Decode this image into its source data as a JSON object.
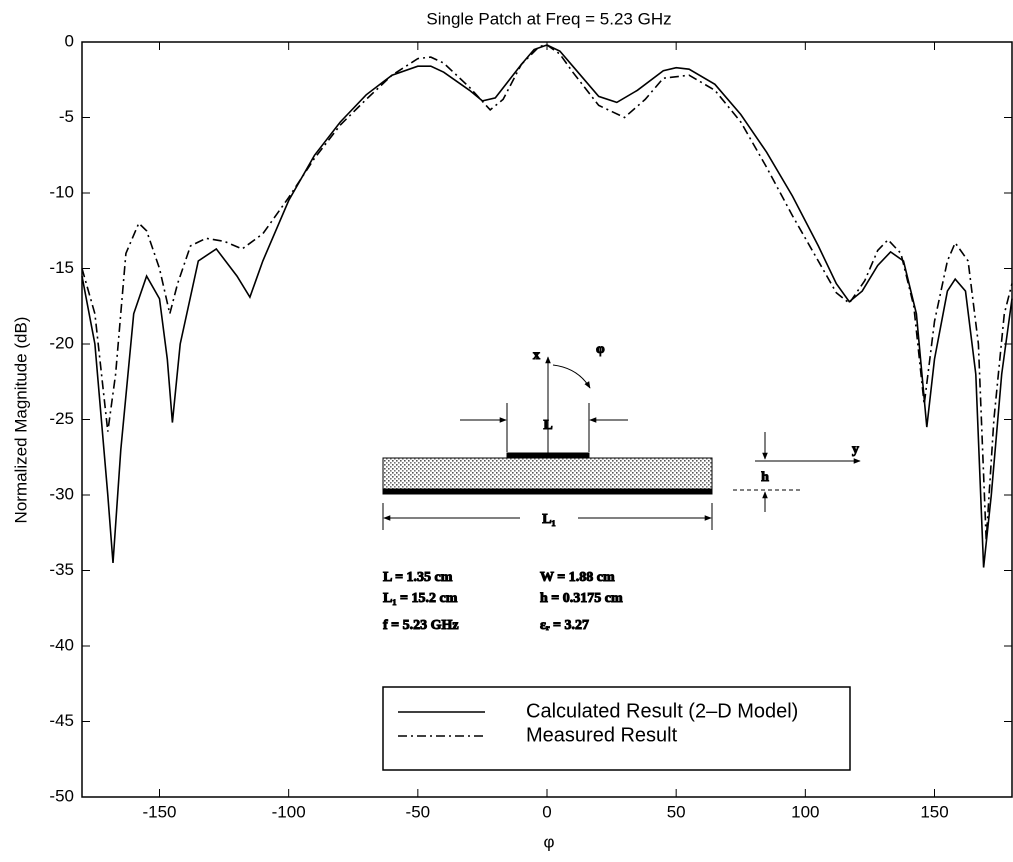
{
  "chart_data": {
    "type": "line",
    "title": "Single Patch at Freq = 5.23 GHz",
    "x_label": "φ",
    "y_label": "Normalized Magnitude (dB)",
    "xlim": [
      -180,
      180
    ],
    "ylim": [
      -50,
      0
    ],
    "xticks": [
      -150,
      -100,
      -50,
      0,
      50,
      100,
      150
    ],
    "yticks": [
      -50,
      -45,
      -40,
      -35,
      -30,
      -25,
      -20,
      -15,
      -10,
      -5,
      0
    ],
    "series": [
      {
        "name": "Calculated Result (2–D Model)",
        "color": "#000000",
        "style": "solid",
        "x": [
          -180,
          -175,
          -170,
          -168,
          -165,
          -160,
          -155,
          -150,
          -147,
          -145,
          -142,
          -135,
          -128,
          -120,
          -115,
          -110,
          -100,
          -90,
          -80,
          -70,
          -60,
          -50,
          -45,
          -40,
          -30,
          -25,
          -20,
          -10,
          -5,
          0,
          5,
          10,
          20,
          27,
          35,
          45,
          50,
          55,
          65,
          75,
          85,
          95,
          105,
          112,
          117,
          122,
          128,
          133,
          138,
          143,
          147,
          150,
          155,
          158,
          162,
          166,
          169,
          172,
          176,
          180
        ],
        "values": [
          -15.5,
          -20,
          -30,
          -34.5,
          -27,
          -18,
          -15.5,
          -17,
          -21,
          -25.2,
          -20,
          -14.5,
          -13.7,
          -15.5,
          -16.9,
          -14.5,
          -10.5,
          -7.5,
          -5.3,
          -3.5,
          -2.2,
          -1.6,
          -1.6,
          -2,
          -3.2,
          -3.9,
          -3.7,
          -1.5,
          -0.5,
          -0.2,
          -0.6,
          -1.6,
          -3.6,
          -4,
          -3.2,
          -1.9,
          -1.7,
          -1.8,
          -2.8,
          -4.8,
          -7.3,
          -10.2,
          -13.5,
          -16,
          -17.2,
          -16.5,
          -14.8,
          -13.9,
          -14.5,
          -18,
          -25.5,
          -21,
          -16.5,
          -15.7,
          -16.5,
          -22,
          -34.8,
          -30,
          -22,
          -17
        ]
      },
      {
        "name": "Measured Result",
        "color": "#000000",
        "style": "dashdot",
        "x": [
          -180,
          -175,
          -170,
          -167,
          -163,
          -158,
          -155,
          -150,
          -146,
          -143,
          -138,
          -132,
          -125,
          -118,
          -110,
          -100,
          -90,
          -80,
          -70,
          -60,
          -50,
          -45,
          -40,
          -30,
          -22,
          -17,
          -10,
          -3,
          0,
          5,
          10,
          20,
          30,
          38,
          45,
          55,
          65,
          75,
          85,
          95,
          105,
          112,
          117,
          123,
          128,
          132,
          137,
          142,
          146,
          150,
          155,
          158,
          163,
          167,
          170,
          173,
          177,
          180
        ],
        "values": [
          -15,
          -18,
          -25.8,
          -22,
          -14,
          -12,
          -12.5,
          -15,
          -18,
          -16,
          -13.5,
          -13,
          -13.2,
          -13.7,
          -12.7,
          -10.3,
          -7.7,
          -5.5,
          -3.8,
          -2.2,
          -1.1,
          -1,
          -1.4,
          -3,
          -4.5,
          -3.8,
          -1.5,
          -0.3,
          -0.2,
          -0.8,
          -2,
          -4.2,
          -5,
          -3.8,
          -2.4,
          -2.2,
          -3.2,
          -5.3,
          -8.3,
          -11.5,
          -14.5,
          -16.6,
          -17.3,
          -15.8,
          -13.8,
          -13.1,
          -14,
          -17.5,
          -24,
          -18.5,
          -14.5,
          -13.3,
          -14.5,
          -20,
          -33,
          -25,
          -18,
          -16
        ]
      }
    ],
    "inset": {
      "x_axis": "x",
      "phi": "φ",
      "patch": "L",
      "y_axis": "y",
      "height": "h",
      "substrate": "L₁",
      "params": [
        "L = 1.35 cm",
        "W = 1.88 cm",
        "L₁ = 15.2 cm",
        "h = 0.3175 cm",
        "f = 5.23 GHz",
        "εᵣ = 3.27"
      ]
    }
  }
}
